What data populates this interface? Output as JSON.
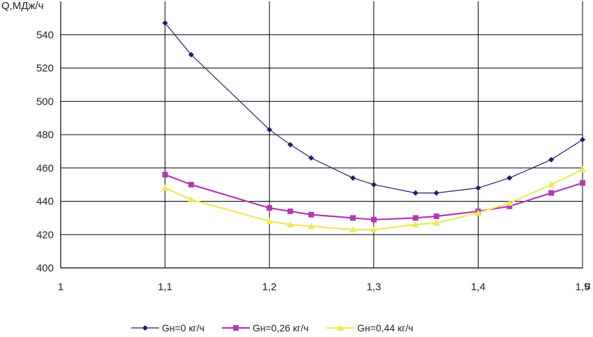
{
  "chart_data": {
    "type": "line",
    "title": "",
    "ylabel": "Q,МДж/ч",
    "xlabel": "α",
    "xlim": [
      1.0,
      1.5
    ],
    "ylim": [
      400,
      560
    ],
    "xticks": [
      1.0,
      1.1,
      1.2,
      1.3,
      1.4,
      1.5
    ],
    "xtick_labels": [
      "1",
      "1,1",
      "1,2",
      "1,3",
      "1,4",
      "1,5"
    ],
    "yticks": [
      400,
      420,
      440,
      460,
      480,
      500,
      520,
      540
    ],
    "ytick_labels": [
      "400",
      "420",
      "440",
      "460",
      "480",
      "500",
      "520",
      "540"
    ],
    "grid": true,
    "legend_position": "bottom",
    "series": [
      {
        "name": "Gн=0 кг/ч",
        "color": "#1f1f66",
        "marker": "diamond",
        "points": [
          [
            1.1,
            547
          ],
          [
            1.125,
            528
          ],
          [
            1.2,
            483
          ],
          [
            1.22,
            474
          ],
          [
            1.24,
            466
          ],
          [
            1.28,
            454
          ],
          [
            1.3,
            450
          ],
          [
            1.34,
            445
          ],
          [
            1.36,
            445
          ],
          [
            1.4,
            448
          ],
          [
            1.43,
            454
          ],
          [
            1.47,
            465
          ],
          [
            1.5,
            477
          ]
        ]
      },
      {
        "name": "Gн=0,26 кг/ч",
        "color": "#b03ab0",
        "marker": "square",
        "points": [
          [
            1.1,
            456
          ],
          [
            1.125,
            450
          ],
          [
            1.2,
            436
          ],
          [
            1.22,
            434
          ],
          [
            1.24,
            432
          ],
          [
            1.28,
            430
          ],
          [
            1.3,
            429
          ],
          [
            1.34,
            430
          ],
          [
            1.36,
            431
          ],
          [
            1.4,
            434
          ],
          [
            1.43,
            437
          ],
          [
            1.47,
            445
          ],
          [
            1.5,
            451
          ]
        ]
      },
      {
        "name": "Gн=0,44 кг/ч",
        "color": "#ece85a",
        "marker": "triangle",
        "points": [
          [
            1.1,
            448
          ],
          [
            1.125,
            441
          ],
          [
            1.2,
            428
          ],
          [
            1.22,
            426
          ],
          [
            1.24,
            425
          ],
          [
            1.28,
            423
          ],
          [
            1.3,
            423
          ],
          [
            1.34,
            426
          ],
          [
            1.36,
            427
          ],
          [
            1.4,
            433
          ],
          [
            1.43,
            439
          ],
          [
            1.47,
            450
          ],
          [
            1.5,
            459
          ]
        ]
      }
    ]
  }
}
